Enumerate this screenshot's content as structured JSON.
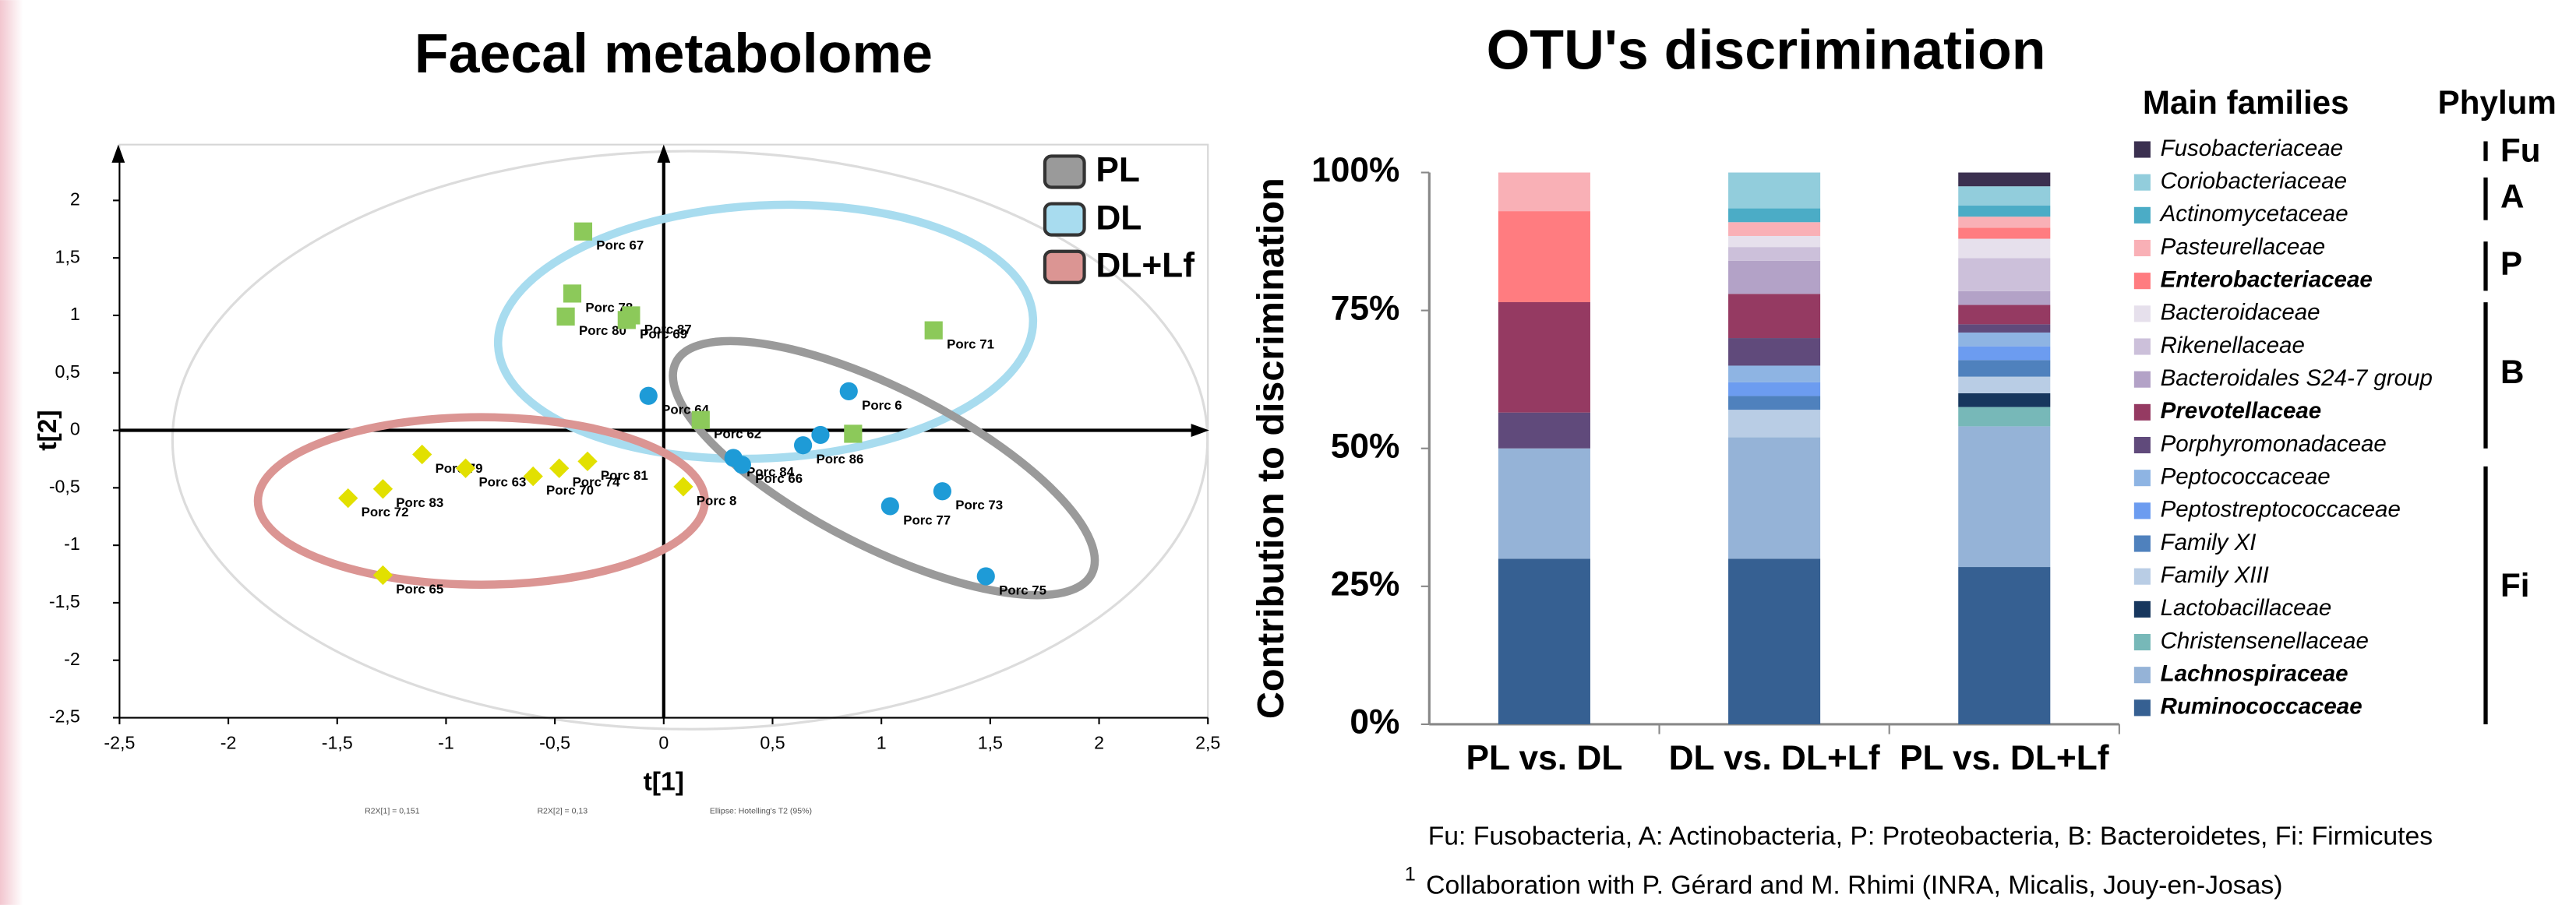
{
  "chart_data": [
    {
      "type": "scatter",
      "title": "Faecal metabolome",
      "x_label": "t[1]",
      "y_label": "t[2]",
      "xlim": [
        -2.5,
        2.5
      ],
      "ylim": [
        -2.5,
        2.4
      ],
      "xticks": [
        {
          "value": -2.5,
          "label": "-2,5"
        },
        -2,
        {
          "value": -1.5,
          "label": "-1,5"
        },
        -1,
        {
          "value": -0.5,
          "label": "-0,5"
        },
        0,
        {
          "value": 0.5,
          "label": "0,5"
        },
        1,
        {
          "value": 1.5,
          "label": "1,5"
        },
        2,
        {
          "value": 2.5,
          "label": "2,5"
        }
      ],
      "yticks": [
        {
          "value": -2.5,
          "label": "-2,5"
        },
        -2,
        {
          "value": -1.5,
          "label": "-1,5"
        },
        -1,
        {
          "value": -0.5,
          "label": "-0,5"
        },
        0,
        {
          "value": 0.5,
          "label": "0,5"
        },
        1,
        {
          "value": 1.5,
          "label": "1,5"
        },
        2
      ],
      "notes": [
        "R2X[1] = 0,151",
        "R2X[2] = 0,13",
        "Ellipse: Hotelling's T2 (95%)"
      ],
      "legend": "upper right",
      "series": [
        {
          "name": "PL",
          "color": "#9a9a9a",
          "marker": "circle",
          "marker_color": "#1e9bd7",
          "label_color": "#1a8cc4",
          "labels": [
            "Porc 64",
            "Porc 84",
            "Porc 66",
            "Porc 86",
            null,
            "Porc 6",
            "Porc 77",
            "Porc 73",
            "Porc 75"
          ],
          "x": [
            -0.07,
            0.32,
            0.36,
            0.64,
            0.72,
            0.85,
            1.04,
            1.28,
            1.48
          ],
          "y": [
            0.3,
            -0.24,
            -0.3,
            -0.13,
            -0.04,
            0.34,
            -0.66,
            -0.53,
            -1.27
          ]
        },
        {
          "name": "DL",
          "color": "#a8dcef",
          "marker": "square",
          "marker_color": "#8cc95a",
          "label_color": "#6aa83a",
          "labels": [
            "Porc 67",
            "Porc 78",
            "Porc 80",
            "Porc 87",
            "Porc 69",
            "Porc 71",
            "Porc 62",
            null
          ],
          "x": [
            -0.37,
            -0.42,
            -0.45,
            -0.15,
            -0.17,
            1.24,
            0.17,
            0.87
          ],
          "y": [
            1.73,
            1.19,
            0.99,
            1.0,
            0.96,
            0.87,
            0.09,
            -0.03
          ]
        },
        {
          "name": "DL+Lf",
          "color": "#db9593",
          "marker": "diamond",
          "marker_color": "#e2e000",
          "label_color": "#a8a800",
          "labels": [
            "Porc 79",
            "Porc 63",
            "Porc 81",
            "Porc 74",
            "Porc 70",
            "Porc 72",
            "Porc 83",
            "Porc 65",
            "Porc 8"
          ],
          "x": [
            -1.11,
            -0.91,
            -0.35,
            -0.48,
            -0.6,
            -1.45,
            -1.29,
            -1.29,
            0.09
          ],
          "y": [
            -0.21,
            -0.33,
            -0.27,
            -0.33,
            -0.4,
            -0.59,
            -0.51,
            -1.26,
            -0.49
          ]
        }
      ]
    },
    {
      "type": "stacked_bar",
      "title": "OTU's discrimination",
      "y_label": "Contribution to discrimination",
      "ylim": [
        0,
        100
      ],
      "yticks": [
        {
          "value": 0,
          "label": "0%"
        },
        {
          "value": 25,
          "label": "25%"
        },
        {
          "value": 50,
          "label": "50%"
        },
        {
          "value": 75,
          "label": "75%"
        },
        {
          "value": 100,
          "label": "100%"
        }
      ],
      "categories": [
        "PL vs. DL",
        "DL vs. DL+Lf",
        "PL vs. DL+Lf"
      ],
      "legend_title": "Main families",
      "phylum_title": "Phylum",
      "phyla": [
        "Fu",
        "A",
        "P",
        "B",
        "Fi"
      ],
      "footnote": "Fu: Fusobacteria, A: Actinobacteria, P: Proteobacteria, B: Bacteroidetes, Fi: Firmicutes",
      "collaboration": {
        "mark": "1",
        "text": "Collaboration with P. Gérard and M. Rhimi (INRA, Micalis, Jouy-en-Josas)"
      },
      "series": [
        {
          "name": "Fusobacteriaceae",
          "color": "#3b3050",
          "values": [
            0,
            0,
            2.5
          ]
        },
        {
          "name": "Coriobacteriaceae",
          "color": "#92cddc",
          "values": [
            0,
            6.5,
            3.5
          ]
        },
        {
          "name": "Actinomycetaceae",
          "color": "#4bacc6",
          "values": [
            0,
            2.5,
            2
          ]
        },
        {
          "name": "Pasteurellaceae",
          "color": "#f9b0b6",
          "values": [
            7,
            2.5,
            2
          ]
        },
        {
          "name": "Enterobacteriaceae",
          "color": "#ff7c80",
          "bold": true,
          "values": [
            16.5,
            0,
            2
          ]
        },
        {
          "name": "Bacteroidaceae",
          "color": "#e6e0ec",
          "values": [
            0,
            2,
            3.5
          ]
        },
        {
          "name": "Rikenellaceae",
          "color": "#ccc0da",
          "values": [
            0,
            2.5,
            6
          ]
        },
        {
          "name": "Bacteroidales S24-7 group",
          "color": "#b3a2c7",
          "values": [
            0,
            6,
            2.5
          ]
        },
        {
          "name": "Prevotellaceae",
          "color": "#953a62",
          "bold": true,
          "values": [
            20,
            8,
            3.5
          ]
        },
        {
          "name": "Porphyromonadaceae",
          "color": "#604a7b",
          "values": [
            6.5,
            5,
            1.5
          ]
        },
        {
          "name": "Peptococcaceae",
          "color": "#8eb4e3",
          "values": [
            0,
            3,
            2.5
          ]
        },
        {
          "name": "Peptostreptococcaceae",
          "color": "#6c9cf0",
          "values": [
            0,
            2.5,
            2.5
          ]
        },
        {
          "name": "Family XI",
          "color": "#4f81bd",
          "values": [
            0,
            2.5,
            3
          ]
        },
        {
          "name": "Family XIII",
          "color": "#b9cde5",
          "values": [
            0,
            5,
            3
          ]
        },
        {
          "name": "Lactobacillaceae",
          "color": "#17375e",
          "values": [
            0,
            0,
            2.5
          ]
        },
        {
          "name": "Christensenellaceae",
          "color": "#77b8b8",
          "values": [
            0,
            0,
            3.5
          ]
        },
        {
          "name": "Lachnospiraceae",
          "color": "#95b3d7",
          "bold": true,
          "values": [
            20,
            22,
            25.5
          ]
        },
        {
          "name": "Ruminococcaceae",
          "color": "#366092",
          "bold": true,
          "values": [
            30,
            30,
            28.5
          ]
        }
      ]
    }
  ]
}
